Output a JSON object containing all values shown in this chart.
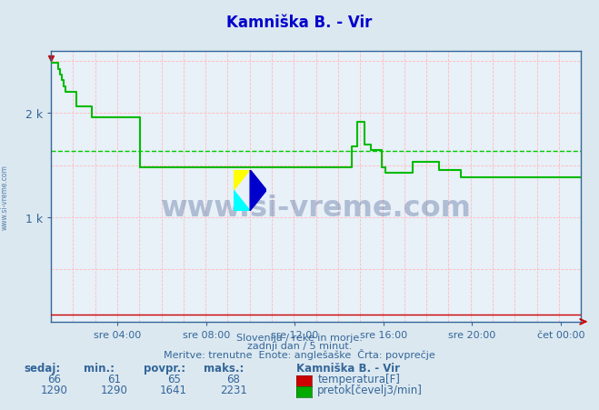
{
  "title": "Kamniška B. - Vir",
  "title_color": "#0000cc",
  "bg_color": "#dce8f0",
  "plot_bg_color": "#e8f0f8",
  "x_min": 0,
  "x_max": 287,
  "y_min": 0,
  "y_max": 2600,
  "y_ticks": [
    1000,
    2000
  ],
  "y_tick_labels": [
    "1 k",
    "2 k"
  ],
  "x_tick_positions": [
    36,
    84,
    132,
    180,
    228,
    276
  ],
  "x_tick_labels": [
    "sre 04:00",
    "sre 08:00",
    "sre 12:00",
    "sre 16:00",
    "sre 20:00",
    "čet 00:00"
  ],
  "avg_flow": 1641,
  "temp_color": "#cc0000",
  "flow_color": "#00bb00",
  "avg_line_color": "#00cc00",
  "subtitle1": "Slovenija / reke in morje.",
  "subtitle2": "zadnji dan / 5 minut.",
  "subtitle3": "Meritve: trenutne  Enote: anglešaške  Črta: povprečje",
  "legend_title": "Kamniška B. - Vir",
  "label_temp": "temperatura[F]",
  "label_flow": "pretok[čevelj3/min]",
  "footer_cols": [
    "sedaj:",
    "min.:",
    "povpr.:",
    "maks.:"
  ],
  "temp_values": [
    66,
    61,
    65,
    68
  ],
  "flow_values": [
    1290,
    1290,
    1641,
    2231
  ],
  "watermark_text": "www.si-vreme.com",
  "axis_label_color": "#336699",
  "text_color": "#336699",
  "vgrid_color": "#ffbbbb",
  "hgrid_color": "#ffbbbb"
}
